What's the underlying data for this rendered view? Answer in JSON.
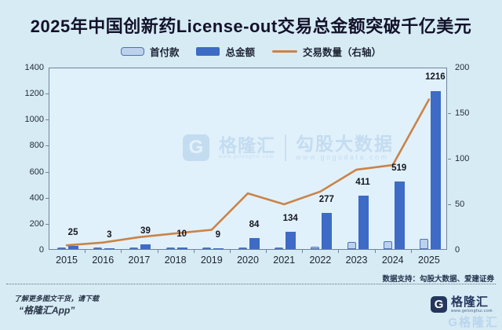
{
  "title": "2025年中国创新药License-out交易总金额突破千亿美元",
  "legend": [
    {
      "label": "首付款",
      "type": "bar-light"
    },
    {
      "label": "总金额",
      "type": "bar-dark"
    },
    {
      "label": "交易数量（右轴）",
      "type": "line"
    }
  ],
  "colors": {
    "background": "#d7ebf5",
    "plot_background": "#e0f1fb",
    "bar_total": "#3d6bc5",
    "bar_upfront_fill": "#bcd2ec",
    "bar_upfront_border": "#4a73b9",
    "line": "#cb8347",
    "title_text": "#12122a",
    "footer_navy": "#24365c",
    "watermark": "#aecbe8"
  },
  "chart_data": {
    "type": "bar",
    "categories": [
      "2015",
      "2016",
      "2017",
      "2018",
      "2019",
      "2020",
      "2021",
      "2022",
      "2023",
      "2024",
      "2025"
    ],
    "series": [
      {
        "name": "首付款",
        "type": "bar",
        "axis": "left",
        "labeled": false,
        "values": [
          15,
          2,
          10,
          4,
          4,
          12,
          15,
          20,
          55,
          60,
          80
        ]
      },
      {
        "name": "总金额",
        "type": "bar",
        "axis": "left",
        "labeled": true,
        "values": [
          25,
          3,
          39,
          10,
          9,
          84,
          134,
          277,
          411,
          519,
          1216
        ]
      },
      {
        "name": "交易数量（右轴）",
        "type": "line",
        "axis": "right",
        "labeled": false,
        "values": [
          5,
          8,
          14,
          18,
          22,
          62,
          50,
          64,
          88,
          93,
          165
        ]
      }
    ],
    "left_axis": {
      "min": 0,
      "max": 1400,
      "step": 200
    },
    "right_axis": {
      "min": 0,
      "max": 200,
      "step": 50
    },
    "grid": false,
    "legend_position": "top",
    "note": "首付款 and 交易数量 values are unlabeled in the figure and estimated from pixel heights"
  },
  "watermark": {
    "logo_letter": "G",
    "brand": "格隆汇",
    "brand_url": "www.gelonghui.com",
    "partner": "勾股大数据",
    "partner_url": "www.gogudata.com"
  },
  "footer": {
    "data_support": "数据支持：勾股大数据、爱建证券",
    "promo_line1": "了解更多图文干货，请下载",
    "promo_line2": "“格隆汇App”",
    "logo_letter": "G",
    "brand": "格隆汇",
    "brand_url": "www.gelonghui.com",
    "watermark_fragment": "G格隆汇"
  }
}
